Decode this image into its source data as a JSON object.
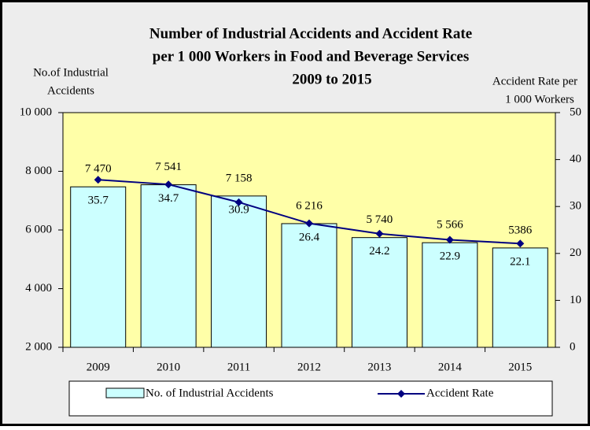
{
  "chart_data": {
    "type": "bar_line",
    "title": [
      "Number of Industrial Accidents  and Accident Rate",
      "per 1 000 Workers in Food and Beverage Services",
      "2009 to 2015"
    ],
    "y_label": [
      "No.of  Industrial",
      "Accidents"
    ],
    "y2_label": [
      "Accident Rate per",
      "1 000 Workers"
    ],
    "categories": [
      "2009",
      "2010",
      "2011",
      "2012",
      "2013",
      "2014",
      "2015"
    ],
    "series": [
      {
        "name": "No. of Industrial Accidents",
        "color": "#ccffff",
        "values": [
          7470,
          7541,
          7158,
          6216,
          5740,
          5566,
          5386
        ],
        "value_labels": [
          "7 470",
          "7 541",
          "7 158",
          "6 216",
          "5 740",
          "5 566",
          "5386"
        ]
      },
      {
        "name": "Accident Rate",
        "color": "#000080",
        "axis": "y2",
        "values": [
          35.7,
          34.7,
          30.9,
          26.4,
          24.2,
          22.9,
          22.1
        ]
      }
    ],
    "ylim": [
      2000,
      10000
    ],
    "yticks": [
      {
        "value": 2000,
        "label": "2 000"
      },
      {
        "value": 4000,
        "label": "4 000"
      },
      {
        "value": 6000,
        "label": "6 000"
      },
      {
        "value": 8000,
        "label": "8 000"
      },
      {
        "value": 10000,
        "label": "10 000"
      }
    ],
    "y2lim": [
      0,
      50
    ],
    "y2ticks": [
      0,
      10,
      20,
      30,
      40,
      50
    ],
    "plot_background": "#ffffa8"
  }
}
